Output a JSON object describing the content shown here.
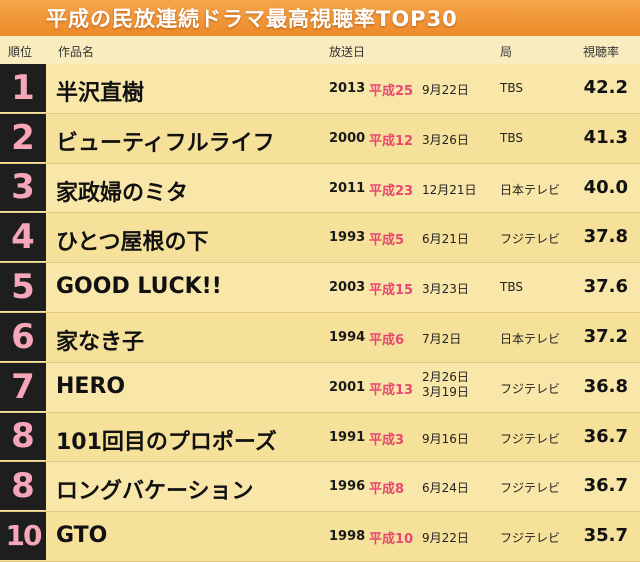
{
  "title": "平成の民放連続ドラマ最高視聴率TOP30",
  "headers": {
    "rank": "順位",
    "title": "作品名",
    "date": "放送日",
    "station": "局",
    "rating": "視聴率"
  },
  "rows": [
    {
      "rank": "1",
      "title": "半沢直樹",
      "year": "2013",
      "heisei": "平成25",
      "date": "9月22日",
      "date2": "",
      "station": "TBS",
      "rating": "42.2"
    },
    {
      "rank": "2",
      "title": "ビューティフルライフ",
      "year": "2000",
      "heisei": "平成12",
      "date": "3月26日",
      "date2": "",
      "station": "TBS",
      "rating": "41.3"
    },
    {
      "rank": "3",
      "title": "家政婦のミタ",
      "year": "2011",
      "heisei": "平成23",
      "date": "12月21日",
      "date2": "",
      "station": "日本テレビ",
      "rating": "40.0"
    },
    {
      "rank": "4",
      "title": "ひとつ屋根の下",
      "year": "1993",
      "heisei": "平成5",
      "date": "6月21日",
      "date2": "",
      "station": "フジテレビ",
      "rating": "37.8"
    },
    {
      "rank": "5",
      "title": "GOOD LUCK!!",
      "year": "2003",
      "heisei": "平成15",
      "date": "3月23日",
      "date2": "",
      "station": "TBS",
      "rating": "37.6"
    },
    {
      "rank": "6",
      "title": "家なき子",
      "year": "1994",
      "heisei": "平成6",
      "date": "7月2日",
      "date2": "",
      "station": "日本テレビ",
      "rating": "37.2"
    },
    {
      "rank": "7",
      "title": "HERO",
      "year": "2001",
      "heisei": "平成13",
      "date": "2月26日",
      "date2": "3月19日",
      "station": "フジテレビ",
      "rating": "36.8"
    },
    {
      "rank": "8",
      "title": "101回目のプロポーズ",
      "year": "1991",
      "heisei": "平成3",
      "date": "9月16日",
      "date2": "",
      "station": "フジテレビ",
      "rating": "36.7"
    },
    {
      "rank": "8",
      "title": "ロングバケーション",
      "year": "1996",
      "heisei": "平成8",
      "date": "6月24日",
      "date2": "",
      "station": "フジテレビ",
      "rating": "36.7"
    },
    {
      "rank": "10",
      "title": "GTO",
      "year": "1998",
      "heisei": "平成10",
      "date": "9月22日",
      "date2": "",
      "station": "フジテレビ",
      "rating": "35.7"
    }
  ]
}
